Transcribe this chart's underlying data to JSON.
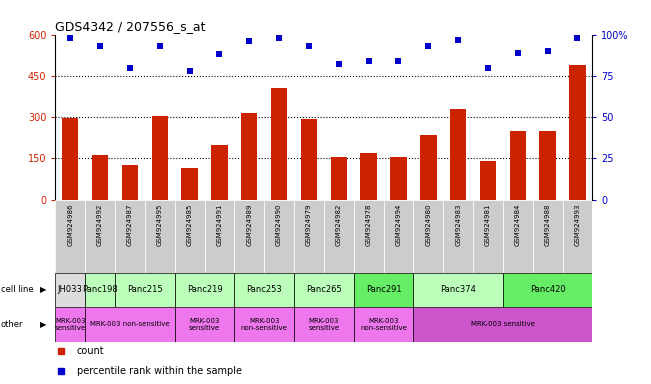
{
  "title": "GDS4342 / 207556_s_at",
  "samples": [
    "GSM924986",
    "GSM924992",
    "GSM924987",
    "GSM924995",
    "GSM924985",
    "GSM924991",
    "GSM924989",
    "GSM924990",
    "GSM924979",
    "GSM924982",
    "GSM924978",
    "GSM924994",
    "GSM924980",
    "GSM924983",
    "GSM924981",
    "GSM924984",
    "GSM924988",
    "GSM924993"
  ],
  "counts": [
    295,
    163,
    125,
    305,
    115,
    198,
    315,
    405,
    293,
    155,
    168,
    155,
    235,
    330,
    140,
    248,
    248,
    490
  ],
  "percentiles": [
    98,
    93,
    80,
    93,
    78,
    88,
    96,
    98,
    93,
    82,
    84,
    84,
    93,
    97,
    80,
    89,
    90,
    98
  ],
  "cell_lines": [
    {
      "name": "JH033",
      "span": [
        0,
        1
      ],
      "color": "#dddddd"
    },
    {
      "name": "Panc198",
      "span": [
        1,
        2
      ],
      "color": "#bbffbb"
    },
    {
      "name": "Panc215",
      "span": [
        2,
        4
      ],
      "color": "#bbffbb"
    },
    {
      "name": "Panc219",
      "span": [
        4,
        6
      ],
      "color": "#bbffbb"
    },
    {
      "name": "Panc253",
      "span": [
        6,
        8
      ],
      "color": "#bbffbb"
    },
    {
      "name": "Panc265",
      "span": [
        8,
        10
      ],
      "color": "#bbffbb"
    },
    {
      "name": "Panc291",
      "span": [
        10,
        12
      ],
      "color": "#66ee66"
    },
    {
      "name": "Panc374",
      "span": [
        12,
        15
      ],
      "color": "#bbffbb"
    },
    {
      "name": "Panc420",
      "span": [
        15,
        18
      ],
      "color": "#66ee66"
    }
  ],
  "other_labels": [
    {
      "text": "MRK-003\nsensitive",
      "span": [
        0,
        1
      ],
      "color": "#ee77ee"
    },
    {
      "text": "MRK-003 non-sensitive",
      "span": [
        1,
        4
      ],
      "color": "#ee77ee"
    },
    {
      "text": "MRK-003\nsensitive",
      "span": [
        4,
        6
      ],
      "color": "#ee77ee"
    },
    {
      "text": "MRK-003\nnon-sensitive",
      "span": [
        6,
        8
      ],
      "color": "#ee77ee"
    },
    {
      "text": "MRK-003\nsensitive",
      "span": [
        8,
        10
      ],
      "color": "#ee77ee"
    },
    {
      "text": "MRK-003\nnon-sensitive",
      "span": [
        10,
        12
      ],
      "color": "#ee77ee"
    },
    {
      "text": "MRK-003 sensitive",
      "span": [
        12,
        18
      ],
      "color": "#cc55cc"
    }
  ],
  "ylim_left": [
    0,
    600
  ],
  "ylim_right": [
    0,
    100
  ],
  "yticks_left": [
    0,
    150,
    300,
    450,
    600
  ],
  "yticks_right": [
    0,
    25,
    50,
    75,
    100
  ],
  "bar_color": "#cc2200",
  "scatter_color": "#0000cc",
  "grid_color": "#000000",
  "background_color": "#ffffff",
  "tick_bg_color": "#cccccc",
  "legend_count_color": "#cc2200",
  "legend_pct_color": "#0000cc"
}
